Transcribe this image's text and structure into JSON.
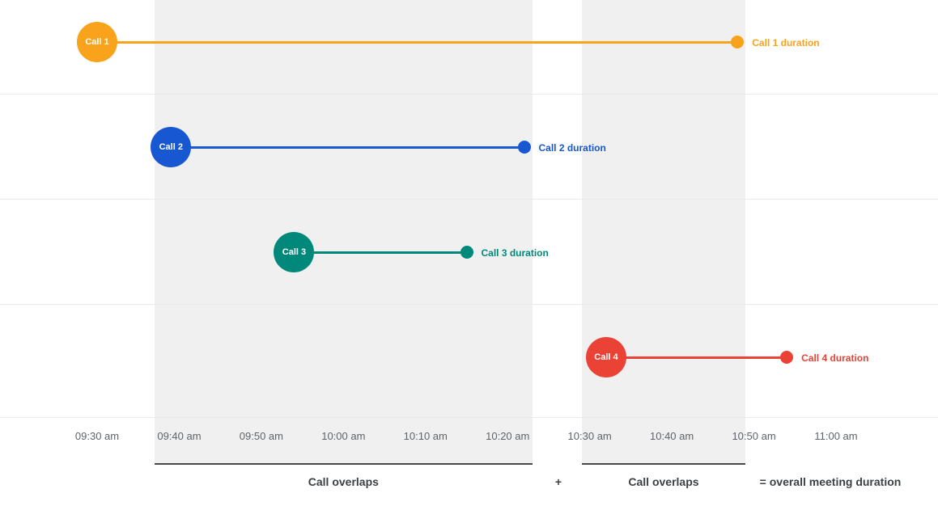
{
  "chart_data": {
    "type": "timeline",
    "title": "",
    "axis": {
      "start": "09:30 am",
      "end": "11:00 am"
    },
    "x_ticks": [
      "09:30 am",
      "09:40 am",
      "09:50 am",
      "10:00 am",
      "10:10 am",
      "10:20 am",
      "10:30 am",
      "10:40 am",
      "10:50 am",
      "11:00 am"
    ],
    "calls": [
      {
        "name": "Call 1",
        "duration_label": "Call 1 duration",
        "color": "#F9A21B",
        "start": "09:30 am",
        "end": "10:48 am"
      },
      {
        "name": "Call 2",
        "duration_label": "Call 2 duration",
        "color": "#1757D2",
        "start": "09:39 am",
        "end": "10:22 am"
      },
      {
        "name": "Call 3",
        "duration_label": "Call 3 duration",
        "color": "#00897B",
        "start": "09:54 am",
        "end": "10:15 am"
      },
      {
        "name": "Call 4",
        "duration_label": "Call 4 duration",
        "color": "#EA4335",
        "start": "10:32 am",
        "end": "10:54 am"
      }
    ],
    "overlap_bands": [
      {
        "start": "09:37 am",
        "end": "10:23 am",
        "label": "Call overlaps"
      },
      {
        "start": "10:29 am",
        "end": "10:49 am",
        "label": "Call overlaps"
      }
    ],
    "annotations": {
      "plus": "+",
      "total": "= overall meeting duration"
    },
    "colors": {
      "band": "#F0F0F0",
      "gridline": "#E9E9E9",
      "underline": "#4A4A4A",
      "tick_text": "#5F6368",
      "label_text": "#3C4043"
    }
  }
}
